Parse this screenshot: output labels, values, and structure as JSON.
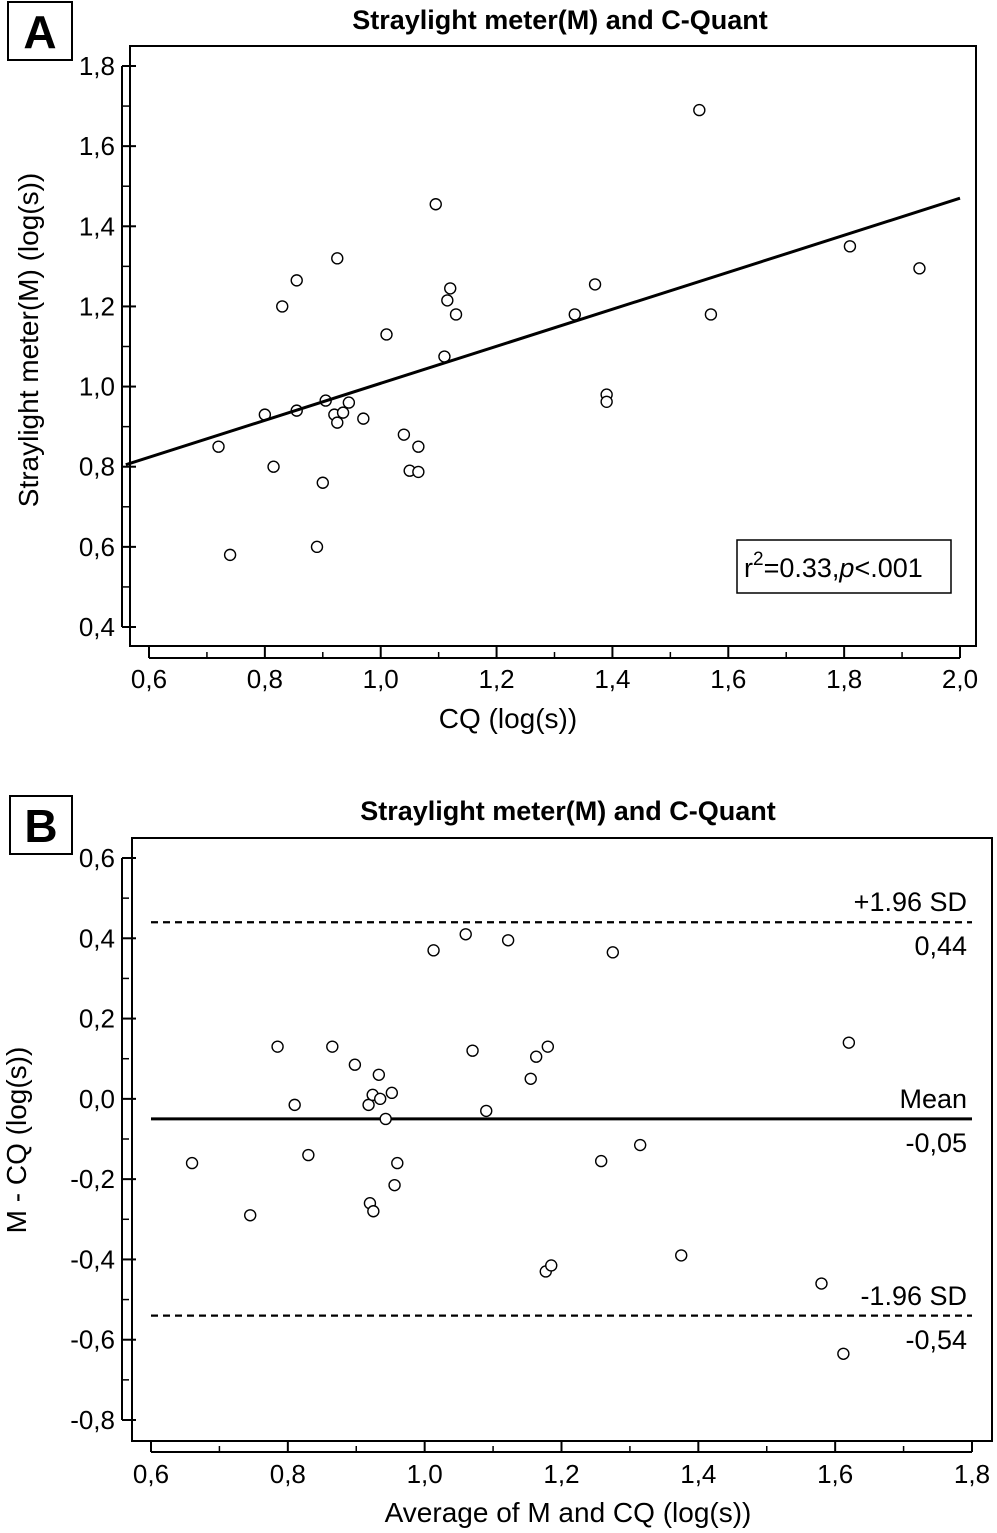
{
  "chart_data": [
    {
      "panel": "A",
      "type": "scatter",
      "title": "Straylight meter(M) and C-Quant",
      "xlabel": "CQ (log(s))",
      "ylabel": "Straylight meter(M) (log(s))",
      "xlim": [
        0.56,
        2.0
      ],
      "ylim": [
        0.38,
        1.84
      ],
      "xticks": [
        "0,6",
        "0,8",
        "1,0",
        "1,2",
        "1,4",
        "1,6",
        "1,8",
        "2,0"
      ],
      "yticks": [
        "0,4",
        "0,6",
        "0,8",
        "1,0",
        "1,2",
        "1,4",
        "1,6",
        "1,8"
      ],
      "points": [
        {
          "x": 0.72,
          "y": 0.85
        },
        {
          "x": 0.74,
          "y": 0.58
        },
        {
          "x": 0.8,
          "y": 0.93
        },
        {
          "x": 0.815,
          "y": 0.8
        },
        {
          "x": 0.83,
          "y": 1.2
        },
        {
          "x": 0.855,
          "y": 1.265
        },
        {
          "x": 0.855,
          "y": 0.94
        },
        {
          "x": 0.89,
          "y": 0.6
        },
        {
          "x": 0.9,
          "y": 0.76
        },
        {
          "x": 0.905,
          "y": 0.965
        },
        {
          "x": 0.92,
          "y": 0.93
        },
        {
          "x": 0.925,
          "y": 0.91
        },
        {
          "x": 0.925,
          "y": 1.32
        },
        {
          "x": 0.935,
          "y": 0.935
        },
        {
          "x": 0.945,
          "y": 0.96
        },
        {
          "x": 0.97,
          "y": 0.92
        },
        {
          "x": 1.01,
          "y": 1.13
        },
        {
          "x": 1.04,
          "y": 0.88
        },
        {
          "x": 1.05,
          "y": 0.79
        },
        {
          "x": 1.065,
          "y": 0.85
        },
        {
          "x": 1.065,
          "y": 0.787
        },
        {
          "x": 1.095,
          "y": 1.455
        },
        {
          "x": 1.11,
          "y": 1.075
        },
        {
          "x": 1.115,
          "y": 1.215
        },
        {
          "x": 1.12,
          "y": 1.245
        },
        {
          "x": 1.13,
          "y": 1.18
        },
        {
          "x": 1.335,
          "y": 1.18
        },
        {
          "x": 1.37,
          "y": 1.255
        },
        {
          "x": 1.39,
          "y": 0.98
        },
        {
          "x": 1.39,
          "y": 0.962
        },
        {
          "x": 1.55,
          "y": 1.69
        },
        {
          "x": 1.57,
          "y": 1.18
        },
        {
          "x": 1.81,
          "y": 1.35
        },
        {
          "x": 1.93,
          "y": 1.295
        }
      ],
      "regression": {
        "x": [
          0.56,
          2.0
        ],
        "y": [
          0.805,
          1.47
        ]
      },
      "annotation": {
        "r2": "r",
        "sup": "2",
        "eq": "=0.33,",
        "p": "p",
        "pval": "<.001"
      }
    },
    {
      "panel": "B",
      "type": "scatter",
      "title": "Straylight meter(M) and C-Quant",
      "xlabel": "Average of M and CQ (log(s))",
      "ylabel": "M - CQ (log(s))",
      "xlim": [
        0.6,
        1.8
      ],
      "ylim": [
        -0.84,
        0.64
      ],
      "xticks": [
        "0,6",
        "0,8",
        "1,0",
        "1,2",
        "1,4",
        "1,6",
        "1,8"
      ],
      "yticks": [
        "-0,8",
        "-0,6",
        "-0,4",
        "-0,2",
        "0,0",
        "0,2",
        "0,4",
        "0,6"
      ],
      "points": [
        {
          "x": 0.66,
          "y": -0.16
        },
        {
          "x": 0.745,
          "y": -0.29
        },
        {
          "x": 0.785,
          "y": 0.13
        },
        {
          "x": 0.81,
          "y": -0.015
        },
        {
          "x": 0.83,
          "y": -0.14
        },
        {
          "x": 0.865,
          "y": 0.13
        },
        {
          "x": 0.898,
          "y": 0.085
        },
        {
          "x": 0.918,
          "y": -0.015
        },
        {
          "x": 0.92,
          "y": -0.26
        },
        {
          "x": 0.924,
          "y": 0.01
        },
        {
          "x": 0.925,
          "y": -0.28
        },
        {
          "x": 0.933,
          "y": 0.06
        },
        {
          "x": 0.935,
          "y": 0.0
        },
        {
          "x": 0.943,
          "y": -0.05
        },
        {
          "x": 0.952,
          "y": 0.015
        },
        {
          "x": 0.956,
          "y": -0.215
        },
        {
          "x": 0.96,
          "y": -0.16
        },
        {
          "x": 1.013,
          "y": 0.37
        },
        {
          "x": 1.06,
          "y": 0.41
        },
        {
          "x": 1.07,
          "y": 0.12
        },
        {
          "x": 1.09,
          "y": -0.03
        },
        {
          "x": 1.122,
          "y": 0.395
        },
        {
          "x": 1.155,
          "y": 0.05
        },
        {
          "x": 1.163,
          "y": 0.105
        },
        {
          "x": 1.177,
          "y": -0.43
        },
        {
          "x": 1.18,
          "y": 0.13
        },
        {
          "x": 1.185,
          "y": -0.415
        },
        {
          "x": 1.258,
          "y": -0.155
        },
        {
          "x": 1.275,
          "y": 0.365
        },
        {
          "x": 1.315,
          "y": -0.115
        },
        {
          "x": 1.375,
          "y": -0.39
        },
        {
          "x": 1.58,
          "y": -0.46
        },
        {
          "x": 1.612,
          "y": -0.635
        },
        {
          "x": 1.62,
          "y": 0.14
        }
      ],
      "lines": {
        "upper": 0.44,
        "mean": -0.05,
        "lower": -0.54
      },
      "labels": {
        "upper_name": "+1.96 SD",
        "upper_value": "0,44",
        "mean_name": "Mean",
        "mean_value": "-0,05",
        "lower_name": "-1.96 SD",
        "lower_value": "-0,54"
      }
    }
  ]
}
